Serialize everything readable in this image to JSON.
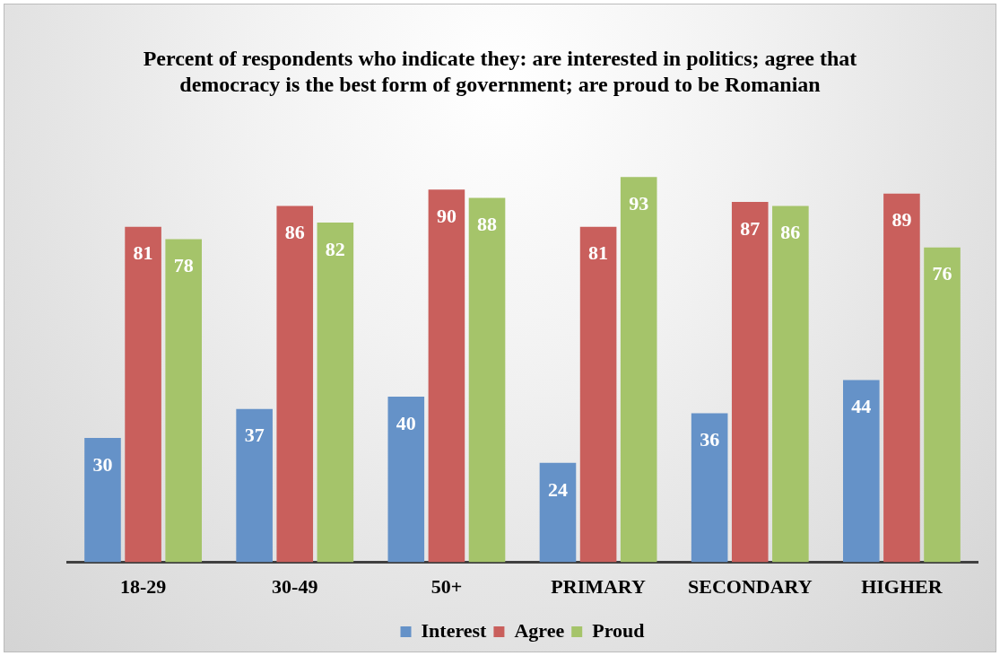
{
  "chart_data": {
    "type": "bar",
    "title": "Percent of respondents who indicate they: are interested in politics; agree that democracy is the best form of government; are proud to be Romanian",
    "categories": [
      "18-29",
      "30-49",
      "50+",
      "PRIMARY",
      "SECONDARY",
      "HIGHER"
    ],
    "series": [
      {
        "name": "Interest",
        "color": "#6592c8",
        "values": [
          30,
          37,
          40,
          24,
          36,
          44
        ]
      },
      {
        "name": "Agree",
        "color": "#c95f5c",
        "values": [
          81,
          86,
          90,
          81,
          87,
          89
        ]
      },
      {
        "name": "Proud",
        "color": "#a5c46a",
        "values": [
          78,
          82,
          88,
          93,
          86,
          76
        ]
      }
    ],
    "data_labels": true,
    "grid": false,
    "legend": "bottom"
  }
}
